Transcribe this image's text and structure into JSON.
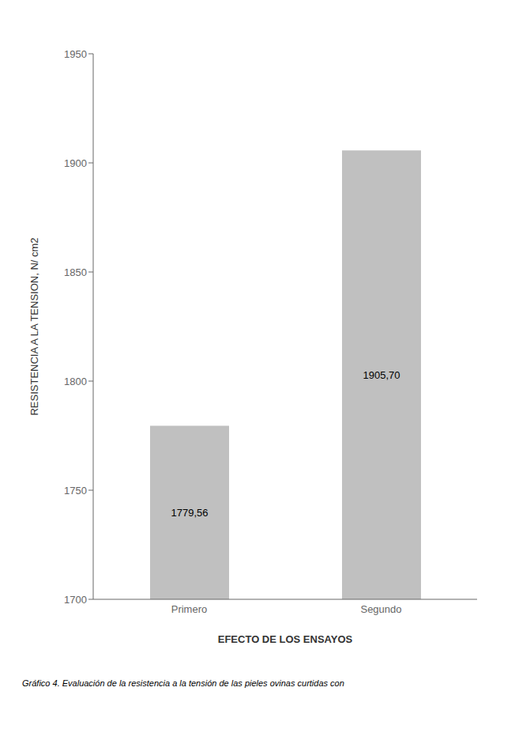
{
  "chart_data": {
    "type": "bar",
    "categories": [
      "Primero",
      "Segundo"
    ],
    "values": [
      1779.56,
      1905.7
    ],
    "data_labels": true,
    "value_labels": [
      "1779,56",
      "1905,70"
    ],
    "color": "#c0c0c0",
    "xlabel": "EFECTO DE LOS ENSAYOS",
    "ylabel": "RESISTENCIA A LA TENSION, N/ cm2",
    "ylim": [
      1700,
      1950
    ],
    "yticks": [
      1700,
      1750,
      1800,
      1850,
      1900,
      1950
    ],
    "grid": false,
    "annotations": [
      "Gráfico 4. Evaluación de la resistencia a la tensión de las pieles ovinas curtidas con"
    ]
  }
}
